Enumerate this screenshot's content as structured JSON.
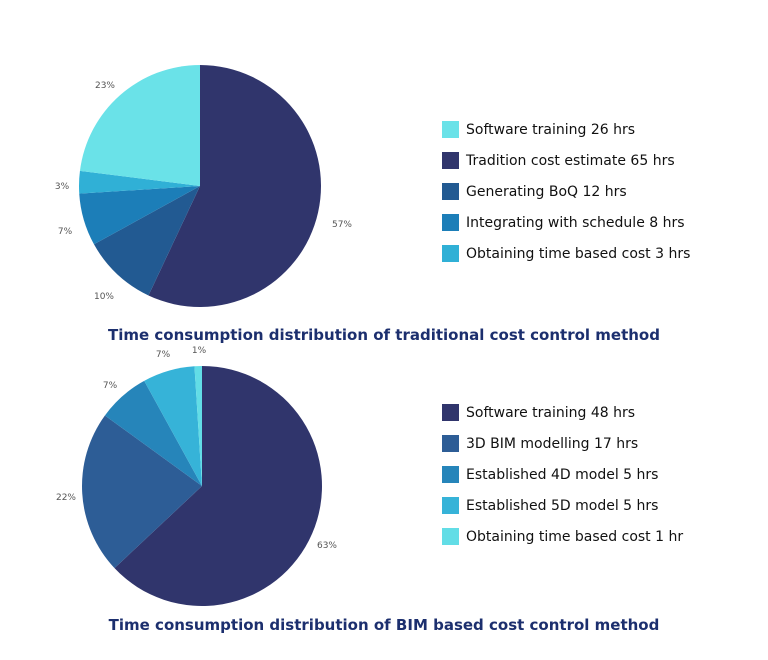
{
  "chart_data": [
    {
      "type": "pie",
      "title": "Time consumption distribution of traditional cost control method",
      "title_color": "#1c2f6e",
      "start_angle_deg": 0,
      "slices": [
        {
          "label": "Tradition cost estimate 65 hrs",
          "percent": 57,
          "value": 65,
          "color": "#30356c"
        },
        {
          "label": "Generating BoQ 12 hrs",
          "percent": 10,
          "value": 12,
          "color": "#225a92"
        },
        {
          "label": "Integrating with schedule 8 hrs",
          "percent": 7,
          "value": 8,
          "color": "#1c7eb8"
        },
        {
          "label": "Obtaining time based cost 3 hrs",
          "percent": 3,
          "value": 3,
          "color": "#30b0d6"
        },
        {
          "label": "Software training 26 hrs",
          "percent": 23,
          "value": 26,
          "color": "#6ae2e8"
        }
      ],
      "legend": [
        {
          "label": "Software training 26 hrs",
          "color": "#6ae2e8"
        },
        {
          "label": "Tradition cost estimate 65 hrs",
          "color": "#30356c"
        },
        {
          "label": "Generating BoQ 12 hrs",
          "color": "#225a92"
        },
        {
          "label": "Integrating with schedule 8 hrs",
          "color": "#1c7eb8"
        },
        {
          "label": "Obtaining time based cost 3 hrs",
          "color": "#30b0d6"
        }
      ]
    },
    {
      "type": "pie",
      "title": "Time consumption distribution of BIM based cost control method",
      "title_color": "#1c2f6e",
      "start_angle_deg": 0,
      "slices": [
        {
          "label": "Software training 48 hrs",
          "percent": 63,
          "value": 48,
          "color": "#30356c"
        },
        {
          "label": "3D BIM modelling 17 hrs",
          "percent": 22,
          "value": 17,
          "color": "#2d5d96"
        },
        {
          "label": "Established 4D model 5 hrs",
          "percent": 7,
          "value": 5,
          "color": "#2685ba"
        },
        {
          "label": "Established 5D model 5 hrs",
          "percent": 7,
          "value": 5,
          "color": "#36b3d8"
        },
        {
          "label": "Obtaining time based cost 1 hr",
          "percent": 1,
          "value": 1,
          "color": "#62dde6"
        }
      ],
      "legend": [
        {
          "label": "Software training 48 hrs",
          "color": "#30356c"
        },
        {
          "label": "3D BIM modelling 17 hrs",
          "color": "#2d5d96"
        },
        {
          "label": "Established 4D model 5 hrs",
          "color": "#2685ba"
        },
        {
          "label": "Established 5D model 5 hrs",
          "color": "#36b3d8"
        },
        {
          "label": "Obtaining time based cost 1 hr",
          "color": "#62dde6"
        }
      ]
    }
  ]
}
